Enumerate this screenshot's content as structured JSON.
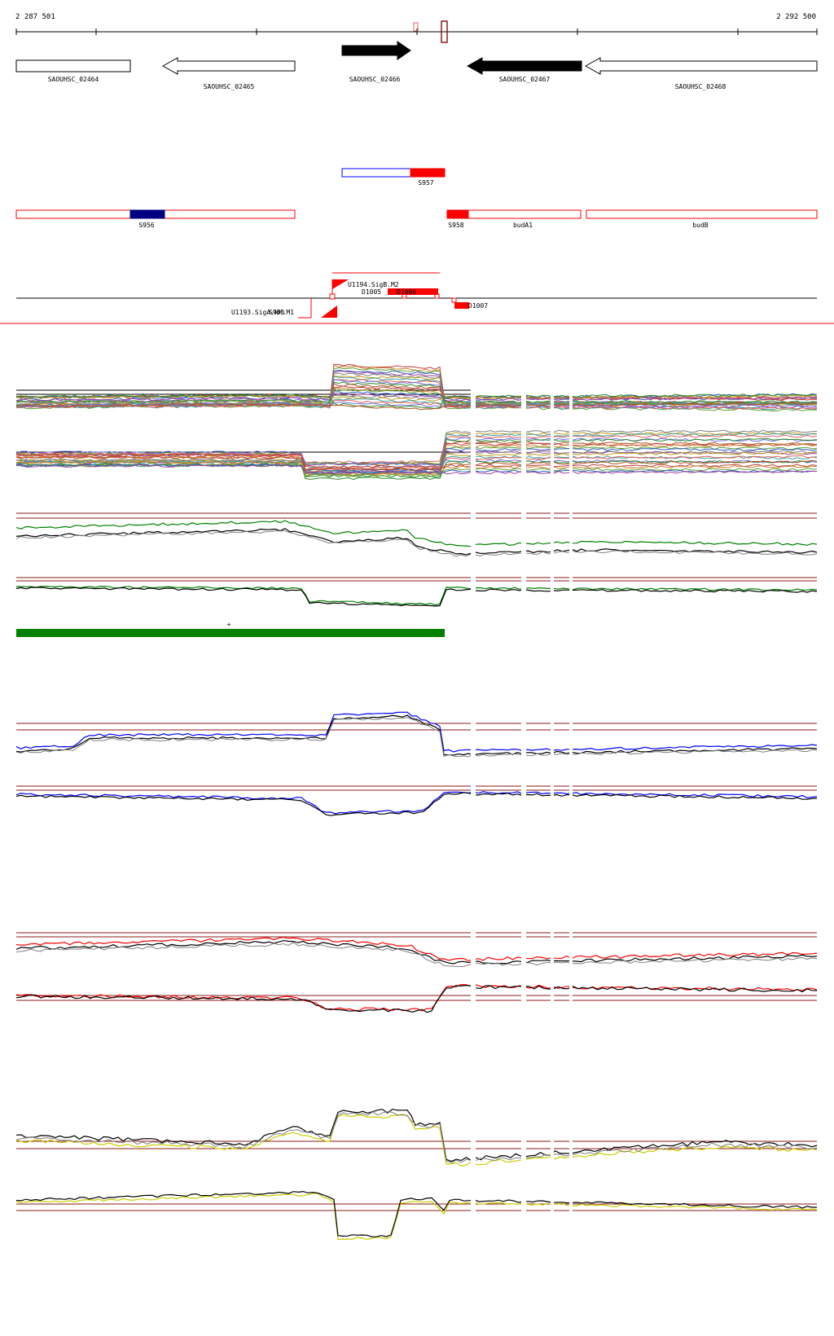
{
  "coords": {
    "start": "2 287 501",
    "end": "2 292 500"
  },
  "genes": [
    {
      "name": "SAOUHSC_02464",
      "strand": "+",
      "filled": false
    },
    {
      "name": "SAOUHSC_02465",
      "strand": "-",
      "filled": false
    },
    {
      "name": "SAOUHSC_02466",
      "strand": "+",
      "filled": true
    },
    {
      "name": "SAOUHSC_02467",
      "strand": "-",
      "filled": true
    },
    {
      "name": "SAOUHSC_02468",
      "strand": "-",
      "filled": false
    }
  ],
  "segments": {
    "s957": "S957",
    "s956": "S956",
    "s958": "S958",
    "budA1": "budA1",
    "budB": "budB"
  },
  "features": {
    "u1194": "U1194.SigB.M2",
    "u1193": "U1193.SigA.NM.M1",
    "s963": "S963",
    "d1005": "D1005",
    "d1006": "D1006",
    "d1007": "D1007"
  },
  "marker_plus": "+",
  "colors": {
    "gene_fill": "#000000",
    "segment_red": "#ff0000",
    "segment_blue": "#000080",
    "segment_outline_blue": "#0000ff",
    "green_bar": "#008000",
    "blue_track": "#0000ff",
    "red_track": "#ff0000",
    "yellow_track": "#cccc00",
    "threshold_line": "#8b1a1a"
  }
}
